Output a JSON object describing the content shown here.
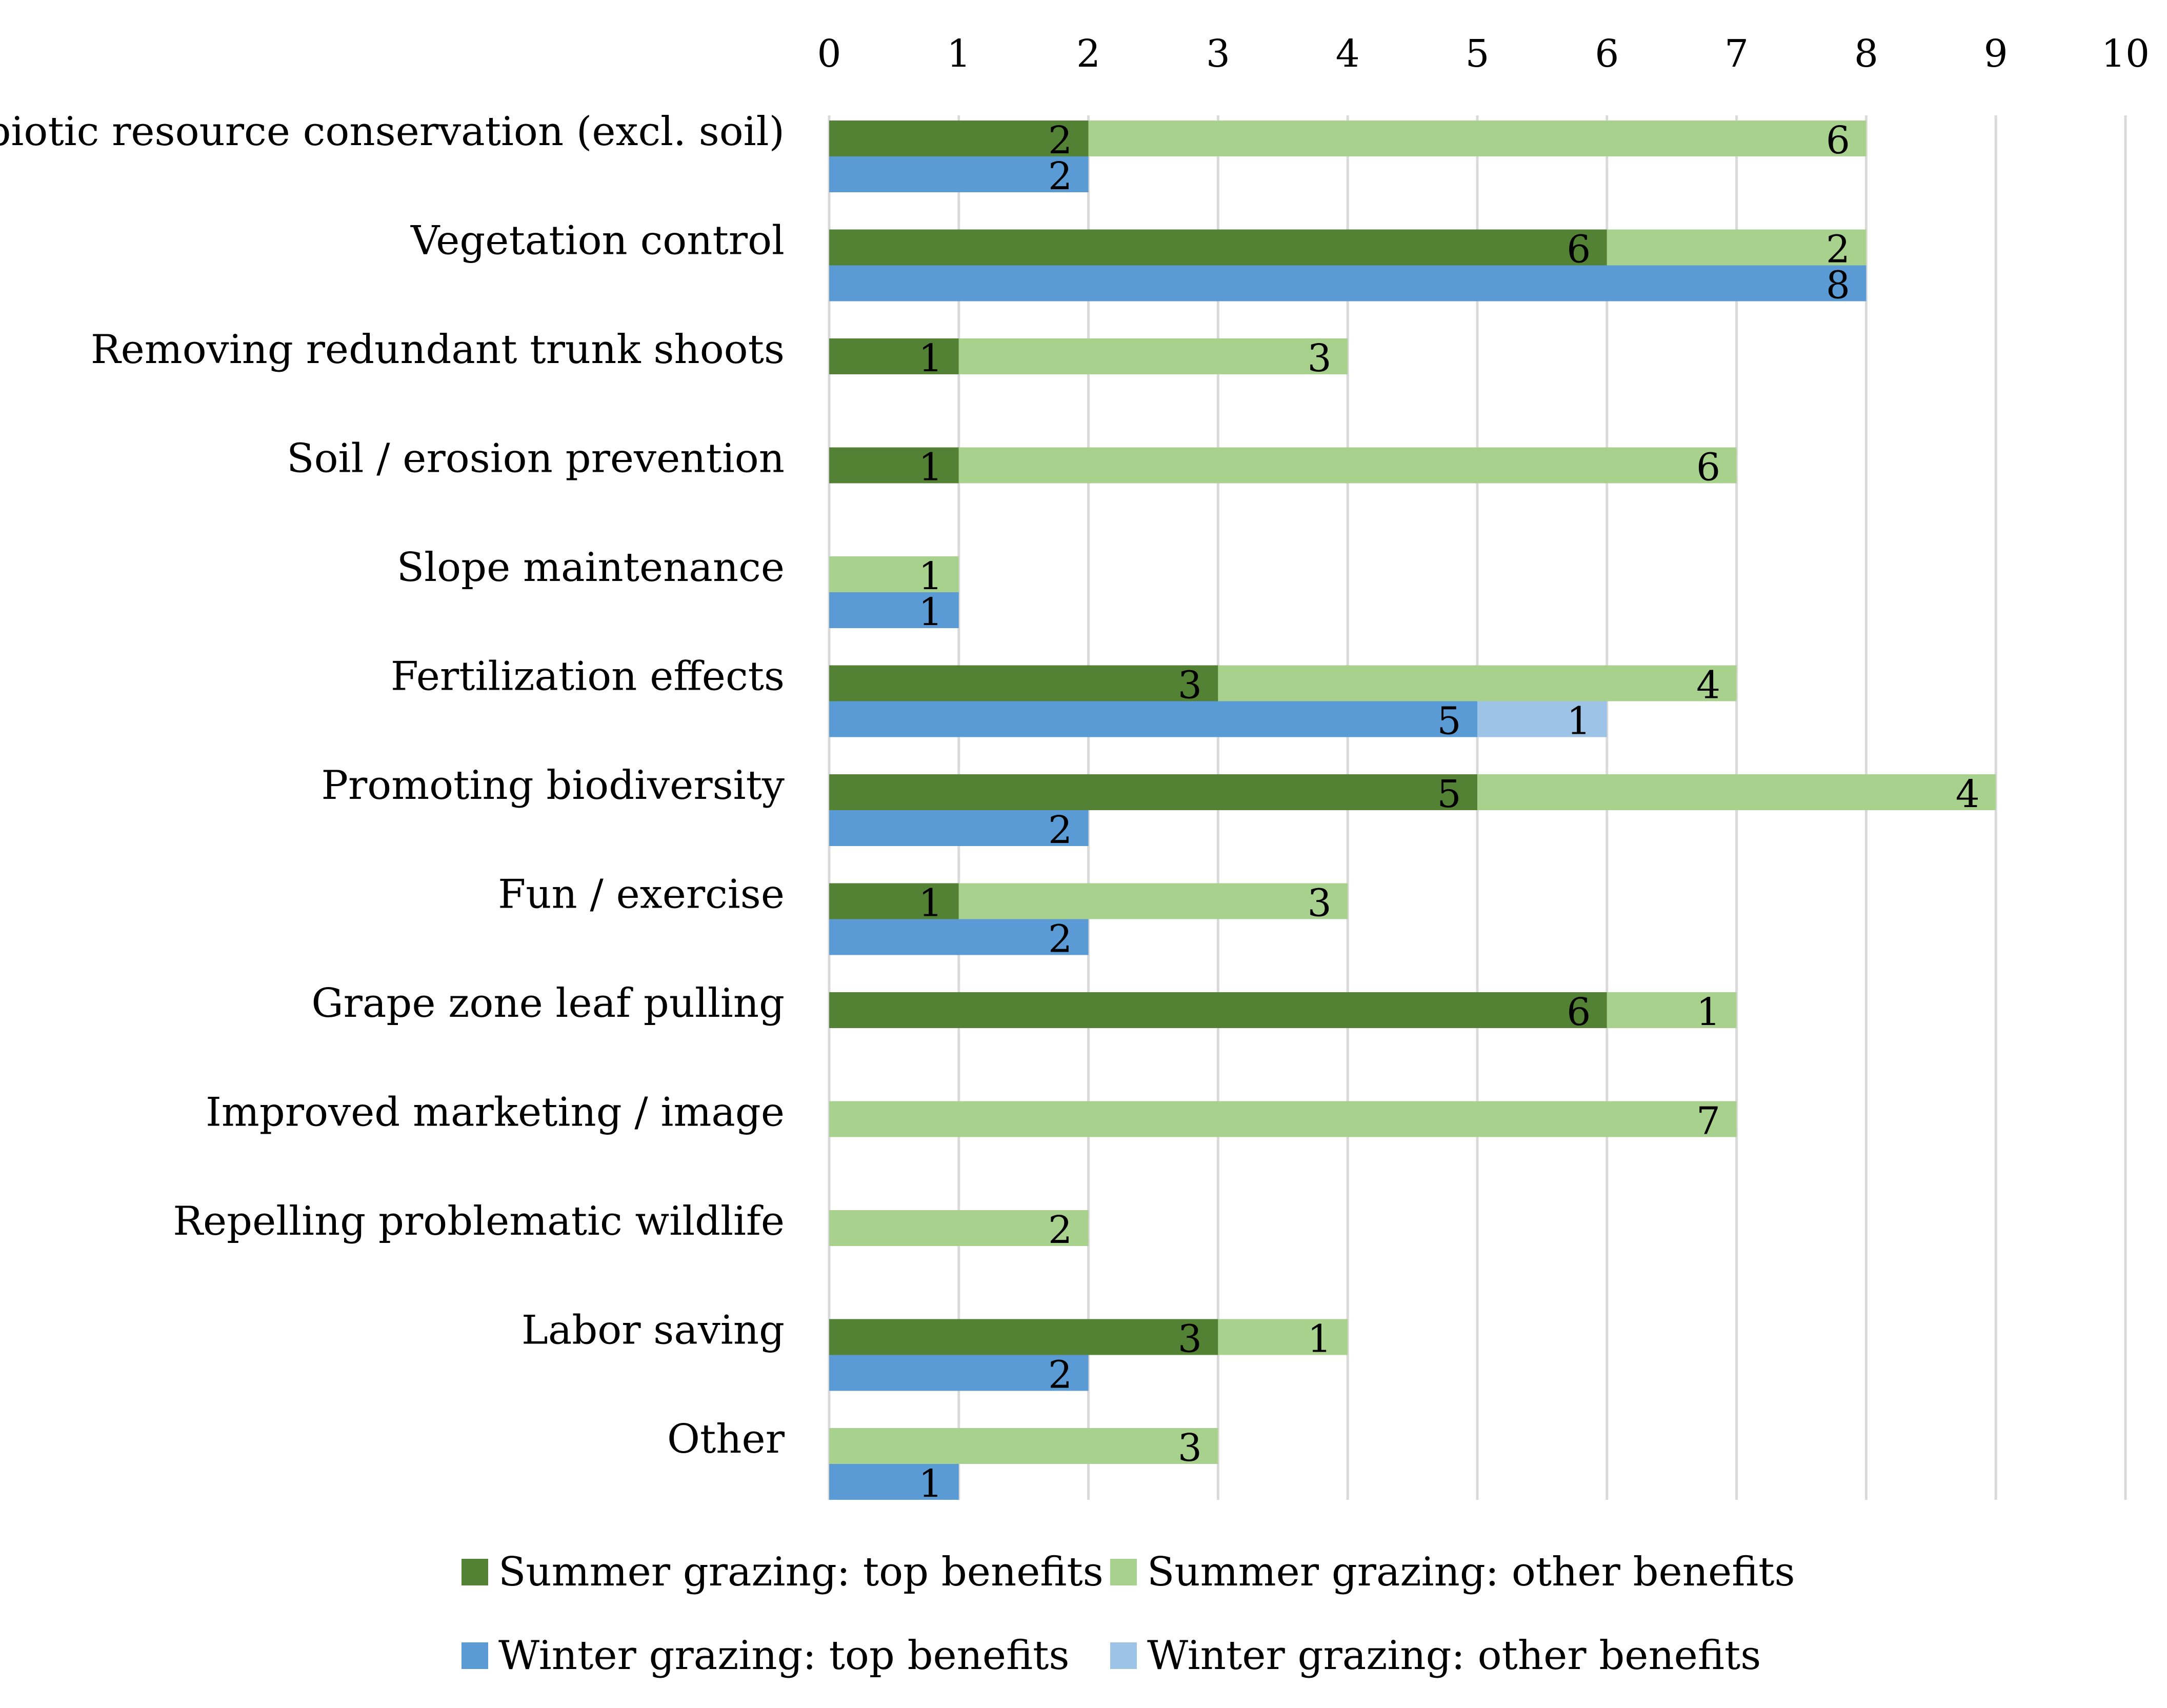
{
  "chart_data": {
    "type": "bar",
    "orientation": "horizontal",
    "stacked": true,
    "xlim": [
      0,
      10
    ],
    "ticks": [
      0,
      1,
      2,
      3,
      4,
      5,
      6,
      7,
      8,
      9,
      10
    ],
    "xaxis_position": "top",
    "grid": true,
    "legend_position": "bottom",
    "categories": [
      "Abiotic resource conservation (excl. soil)",
      "Vegetation control",
      "Removing redundant trunk shoots",
      "Soil / erosion prevention",
      "Slope maintenance",
      "Fertilization effects",
      "Promoting biodiversity",
      "Fun / exercise",
      "Grape zone leaf pulling",
      "Improved marketing / image",
      "Repelling problematic wildlife",
      "Labor saving",
      "Other"
    ],
    "series": [
      {
        "name": "Summer grazing: top benefits",
        "group": "summer",
        "color": "#548235",
        "values": [
          2,
          6,
          1,
          1,
          0,
          3,
          5,
          1,
          6,
          0,
          0,
          3,
          0
        ]
      },
      {
        "name": "Summer grazing: other benefits",
        "group": "summer",
        "color": "#a9d18e",
        "values": [
          6,
          2,
          3,
          6,
          1,
          4,
          4,
          3,
          1,
          7,
          2,
          1,
          3
        ]
      },
      {
        "name": "Winter grazing: top benefits",
        "group": "winter",
        "color": "#5b9bd5",
        "values": [
          2,
          8,
          0,
          0,
          1,
          5,
          2,
          2,
          0,
          0,
          0,
          2,
          1
        ]
      },
      {
        "name": "Winter grazing: other benefits",
        "group": "winter",
        "color": "#9dc3e6",
        "values": [
          0,
          0,
          0,
          0,
          0,
          1,
          0,
          0,
          0,
          0,
          0,
          0,
          0
        ]
      }
    ]
  }
}
